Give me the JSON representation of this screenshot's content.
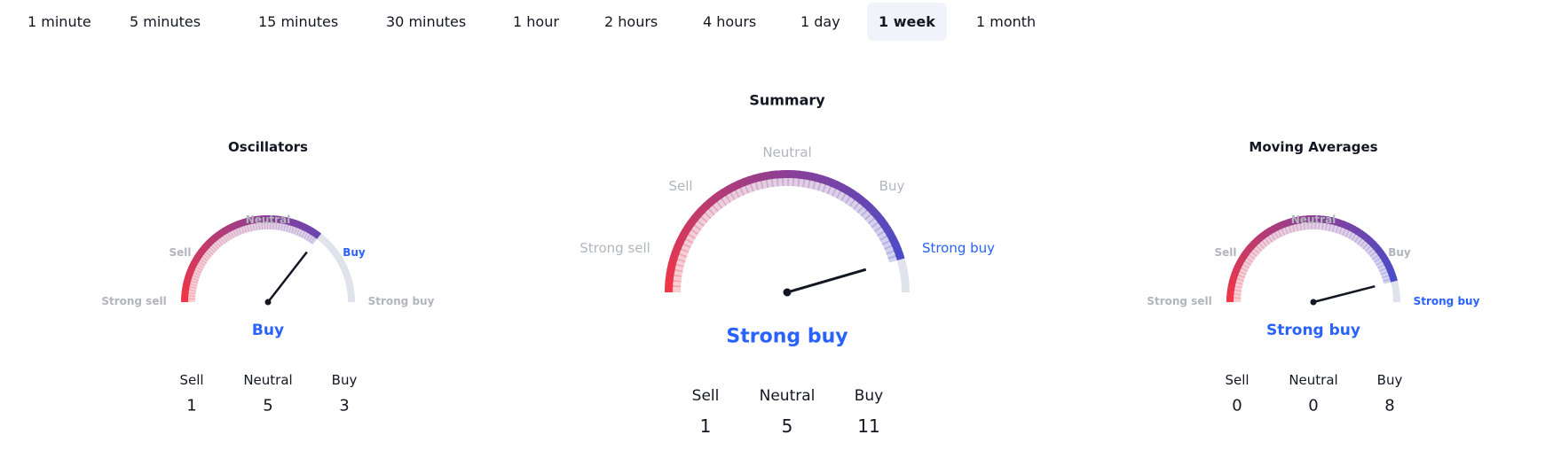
{
  "tabs": [
    {
      "label": "1 minute",
      "active": false
    },
    {
      "label": "5 minutes",
      "active": false
    },
    {
      "label": "15 minutes",
      "active": false
    },
    {
      "label": "30 minutes",
      "active": false
    },
    {
      "label": "1 hour",
      "active": false
    },
    {
      "label": "2 hours",
      "active": false
    },
    {
      "label": "4 hours",
      "active": false
    },
    {
      "label": "1 day",
      "active": false
    },
    {
      "label": "1 week",
      "active": true
    },
    {
      "label": "1 month",
      "active": false
    }
  ],
  "scale_labels": {
    "strong_sell": "Strong sell",
    "sell": "Sell",
    "neutral": "Neutral",
    "buy": "Buy",
    "strong_buy": "Strong buy"
  },
  "count_labels": {
    "sell": "Sell",
    "neutral": "Neutral",
    "buy": "Buy"
  },
  "colors": {
    "accent": "#2962ff",
    "sell": "#f23645",
    "neutral": "#8b3f96",
    "buy": "#3d4fd4",
    "track": "#e0e3eb",
    "label": "#b2b5be",
    "needle": "#131722"
  },
  "gauges": {
    "oscillators": {
      "title": "Oscillators",
      "result": "Buy",
      "active_label": "buy",
      "needle_position": 0.71,
      "counts": {
        "sell": "1",
        "neutral": "5",
        "buy": "3"
      }
    },
    "summary": {
      "title": "Summary",
      "result": "Strong buy",
      "active_label": "strong_buy",
      "needle_position": 0.91,
      "counts": {
        "sell": "1",
        "neutral": "5",
        "buy": "11"
      }
    },
    "moving_averages": {
      "title": "Moving Averages",
      "result": "Strong buy",
      "active_label": "strong_buy",
      "needle_position": 0.92,
      "counts": {
        "sell": "0",
        "neutral": "0",
        "buy": "8"
      }
    }
  }
}
